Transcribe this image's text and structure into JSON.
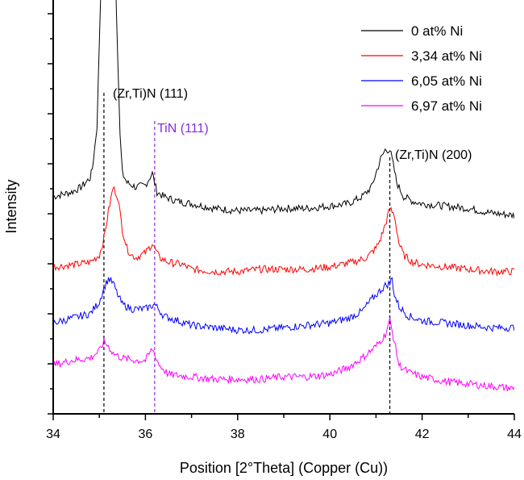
{
  "chart_data": {
    "type": "line",
    "title": "",
    "xlabel": "Position [2°Theta] (Copper (Cu))",
    "ylabel": "Intensity",
    "xlim": [
      34,
      44
    ],
    "xticks": [
      "34",
      "36",
      "38",
      "40",
      "42",
      "44"
    ],
    "y_tick_labels_shown": false,
    "grid": false,
    "legend_placement": "top-right",
    "series": [
      {
        "name": "0 at% Ni",
        "color": "#000000",
        "offset": 3.6,
        "x": [
          34.0,
          34.4,
          34.6,
          34.8,
          34.85,
          34.95,
          35.0,
          35.05,
          35.1,
          35.15,
          35.2,
          35.25,
          35.3,
          35.35,
          35.4,
          35.45,
          35.5,
          35.6,
          35.8,
          36.0,
          36.15,
          36.25,
          36.4,
          36.7,
          37.0,
          37.5,
          38.0,
          38.5,
          39.0,
          39.5,
          40.0,
          40.4,
          40.7,
          40.9,
          41.0,
          41.1,
          41.2,
          41.3,
          41.35,
          41.45,
          41.6,
          41.8,
          42.0,
          42.5,
          43.0,
          43.5,
          44.0
        ],
        "y": [
          0.3,
          0.4,
          0.5,
          0.7,
          0.9,
          1.8,
          3.6,
          5.3,
          5.6,
          5.2,
          5.4,
          5.6,
          5.5,
          5.1,
          3.3,
          1.6,
          0.8,
          0.6,
          0.5,
          0.55,
          0.8,
          0.4,
          0.3,
          0.2,
          0.15,
          0.05,
          0.0,
          0.0,
          0.05,
          0.05,
          0.1,
          0.15,
          0.3,
          0.5,
          0.8,
          1.1,
          1.3,
          1.3,
          1.1,
          0.6,
          0.3,
          0.2,
          0.15,
          0.1,
          0.05,
          -0.05,
          -0.1
        ]
      },
      {
        "name": "3,34 at% Ni",
        "color": "#ff0000",
        "offset": 2.4,
        "x": [
          34.0,
          34.5,
          34.8,
          35.0,
          35.1,
          35.2,
          35.3,
          35.4,
          35.5,
          35.6,
          35.7,
          35.8,
          36.0,
          36.15,
          36.3,
          36.5,
          36.8,
          37.0,
          37.5,
          38.0,
          38.5,
          39.0,
          39.5,
          40.0,
          40.5,
          40.8,
          41.0,
          41.1,
          41.2,
          41.3,
          41.4,
          41.5,
          41.6,
          41.8,
          42.0,
          42.5,
          43.0,
          43.5,
          44.0
        ],
        "y": [
          0.0,
          0.05,
          0.1,
          0.25,
          0.6,
          1.2,
          1.7,
          1.5,
          0.8,
          0.4,
          0.25,
          0.2,
          0.3,
          0.5,
          0.2,
          0.1,
          0.05,
          -0.05,
          -0.1,
          -0.1,
          -0.05,
          -0.05,
          -0.05,
          0.0,
          0.1,
          0.2,
          0.4,
          0.6,
          0.9,
          1.25,
          1.1,
          0.5,
          0.25,
          0.1,
          0.05,
          0.0,
          -0.05,
          -0.1,
          -0.1
        ]
      },
      {
        "name": "6,05 at% Ni",
        "color": "#0000ff",
        "offset": 1.2,
        "x": [
          34.0,
          34.4,
          34.8,
          35.0,
          35.1,
          35.2,
          35.3,
          35.4,
          35.5,
          35.7,
          36.0,
          36.2,
          36.4,
          36.7,
          37.0,
          37.5,
          38.0,
          38.5,
          39.0,
          39.5,
          40.0,
          40.4,
          40.7,
          40.9,
          41.1,
          41.2,
          41.3,
          41.35,
          41.4,
          41.5,
          41.7,
          42.0,
          42.5,
          43.0,
          43.5,
          44.0
        ],
        "y": [
          0.0,
          0.1,
          0.2,
          0.45,
          0.75,
          0.95,
          0.85,
          0.6,
          0.4,
          0.3,
          0.3,
          0.4,
          0.15,
          0.05,
          -0.05,
          -0.1,
          -0.15,
          -0.15,
          -0.1,
          -0.05,
          0.0,
          0.1,
          0.25,
          0.5,
          0.7,
          0.8,
          0.85,
          0.95,
          0.6,
          0.35,
          0.15,
          0.05,
          0.0,
          -0.05,
          -0.1,
          -0.1
        ]
      },
      {
        "name": "6,97 at% Ni",
        "color": "#ff00ff",
        "offset": 0.0,
        "x": [
          34.0,
          34.4,
          34.8,
          35.0,
          35.1,
          35.2,
          35.3,
          35.5,
          35.8,
          36.0,
          36.15,
          36.3,
          36.5,
          37.0,
          37.5,
          38.0,
          38.5,
          39.0,
          39.5,
          40.0,
          40.4,
          40.7,
          41.0,
          41.2,
          41.3,
          41.4,
          41.5,
          41.7,
          42.0,
          42.5,
          43.0,
          43.5,
          44.0
        ],
        "y": [
          0.3,
          0.4,
          0.45,
          0.6,
          0.8,
          0.7,
          0.55,
          0.45,
          0.4,
          0.4,
          0.65,
          0.3,
          0.1,
          0.05,
          0.0,
          0.0,
          0.0,
          0.05,
          0.05,
          0.1,
          0.25,
          0.45,
          0.7,
          0.95,
          1.25,
          0.8,
          0.3,
          0.15,
          0.05,
          -0.05,
          -0.1,
          -0.15,
          -0.2
        ]
      }
    ],
    "reference_lines": [
      {
        "label": "(Zr,Ti)N (111)",
        "x": 35.1,
        "color": "#000000",
        "label_color": "#000000"
      },
      {
        "label": "TiN (111)",
        "x": 36.2,
        "color": "#8a2be2",
        "label_color": "#8a2be2"
      },
      {
        "label": "(Zr,Ti)N (200)",
        "x": 41.3,
        "color": "#000000",
        "label_color": "#000000"
      }
    ]
  }
}
